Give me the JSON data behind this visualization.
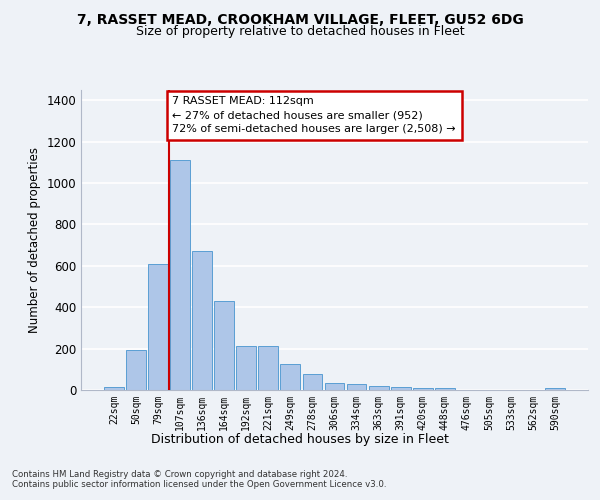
{
  "title1": "7, RASSET MEAD, CROOKHAM VILLAGE, FLEET, GU52 6DG",
  "title2": "Size of property relative to detached houses in Fleet",
  "xlabel": "Distribution of detached houses by size in Fleet",
  "ylabel": "Number of detached properties",
  "categories": [
    "22sqm",
    "50sqm",
    "79sqm",
    "107sqm",
    "136sqm",
    "164sqm",
    "192sqm",
    "221sqm",
    "249sqm",
    "278sqm",
    "306sqm",
    "334sqm",
    "363sqm",
    "391sqm",
    "420sqm",
    "448sqm",
    "476sqm",
    "505sqm",
    "533sqm",
    "562sqm",
    "590sqm"
  ],
  "values": [
    15,
    195,
    610,
    1110,
    670,
    430,
    215,
    215,
    125,
    75,
    35,
    30,
    20,
    15,
    10,
    10,
    0,
    0,
    0,
    0,
    10
  ],
  "bar_color": "#aec6e8",
  "bar_edge_color": "#5a9fd4",
  "annotation_box_text": "7 RASSET MEAD: 112sqm\n← 27% of detached houses are smaller (952)\n72% of semi-detached houses are larger (2,508) →",
  "ylim": [
    0,
    1450
  ],
  "yticks": [
    0,
    200,
    400,
    600,
    800,
    1000,
    1200,
    1400
  ],
  "footer1": "Contains HM Land Registry data © Crown copyright and database right 2024.",
  "footer2": "Contains public sector information licensed under the Open Government Licence v3.0.",
  "bg_color": "#eef2f7",
  "grid_color": "#ffffff",
  "annotation_box_color": "#ffffff",
  "annotation_box_edge_color": "#cc0000",
  "vline_color": "#cc0000",
  "vline_bin_index": 3
}
